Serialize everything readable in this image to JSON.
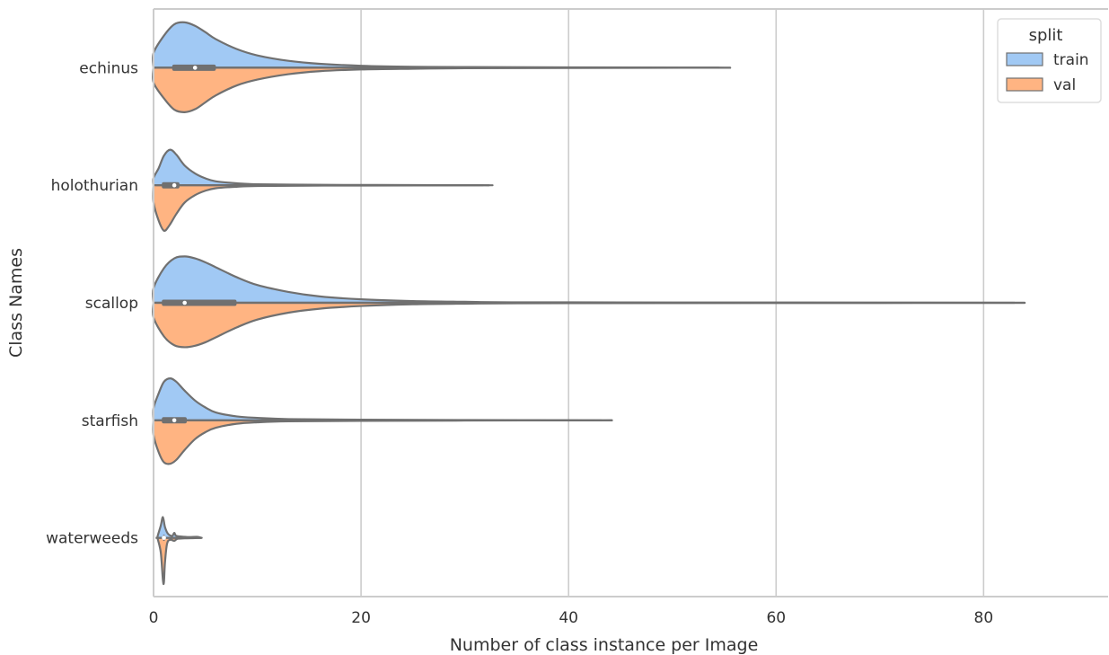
{
  "chart_data": {
    "type": "violin",
    "xlabel": "Number of class instance per Image",
    "ylabel": "Class Names",
    "xlim": [
      0,
      92
    ],
    "xticks": [
      0,
      20,
      40,
      60,
      80
    ],
    "grid": "x",
    "categories": [
      "echinus",
      "holothurian",
      "scallop",
      "starfish",
      "waterweeds"
    ],
    "legend": {
      "title": "split",
      "position": "top-right",
      "entries": [
        {
          "label": "train",
          "color": "#a1c9f4"
        },
        {
          "label": "val",
          "color": "#ffb482"
        }
      ]
    },
    "violins": [
      {
        "category": "echinus",
        "max": 54.5,
        "box": {
          "q1": 1.8,
          "median": 4,
          "q3": 6
        },
        "train": [
          [
            0,
            0.3
          ],
          [
            1,
            0.65
          ],
          [
            2,
            0.88
          ],
          [
            3,
            0.92
          ],
          [
            4,
            0.85
          ],
          [
            5,
            0.72
          ],
          [
            6,
            0.58
          ],
          [
            8,
            0.38
          ],
          [
            10,
            0.25
          ],
          [
            13,
            0.14
          ],
          [
            16,
            0.08
          ],
          [
            20,
            0.04
          ],
          [
            25,
            0.02
          ],
          [
            30,
            0.015
          ],
          [
            40,
            0.008
          ],
          [
            54.5,
            0
          ]
        ],
        "val": [
          [
            0,
            0.3
          ],
          [
            1,
            0.62
          ],
          [
            2,
            0.85
          ],
          [
            3,
            0.9
          ],
          [
            4,
            0.84
          ],
          [
            5,
            0.7
          ],
          [
            6,
            0.56
          ],
          [
            8,
            0.36
          ],
          [
            10,
            0.24
          ],
          [
            13,
            0.13
          ],
          [
            16,
            0.07
          ],
          [
            20,
            0.035
          ],
          [
            25,
            0.02
          ],
          [
            30,
            0.01
          ],
          [
            40,
            0.005
          ],
          [
            54.5,
            0
          ]
        ]
      },
      {
        "category": "holothurian",
        "max": 31.8,
        "box": {
          "q1": 0.8,
          "median": 2,
          "q3": 2.5
        },
        "train": [
          [
            0,
            0.15
          ],
          [
            0.5,
            0.35
          ],
          [
            1,
            0.6
          ],
          [
            1.6,
            0.72
          ],
          [
            2.2,
            0.62
          ],
          [
            3,
            0.4
          ],
          [
            4,
            0.24
          ],
          [
            5,
            0.14
          ],
          [
            6,
            0.08
          ],
          [
            8,
            0.04
          ],
          [
            10,
            0.02
          ],
          [
            15,
            0.01
          ],
          [
            20,
            0.006
          ],
          [
            25,
            0.004
          ],
          [
            31.8,
            0
          ]
        ],
        "val": [
          [
            0,
            0.35
          ],
          [
            0.5,
            0.72
          ],
          [
            1,
            0.92
          ],
          [
            1.5,
            0.82
          ],
          [
            2.2,
            0.58
          ],
          [
            3,
            0.35
          ],
          [
            4,
            0.2
          ],
          [
            5,
            0.11
          ],
          [
            6,
            0.06
          ],
          [
            8,
            0.03
          ],
          [
            10,
            0.015
          ],
          [
            15,
            0.008
          ],
          [
            20,
            0.005
          ],
          [
            31.8,
            0
          ]
        ]
      },
      {
        "category": "scallop",
        "max": 83,
        "box": {
          "q1": 0.8,
          "median": 3,
          "q3": 8
        },
        "train": [
          [
            0,
            0.3
          ],
          [
            1,
            0.7
          ],
          [
            2,
            0.9
          ],
          [
            3,
            0.94
          ],
          [
            4,
            0.9
          ],
          [
            5,
            0.82
          ],
          [
            6,
            0.72
          ],
          [
            8,
            0.52
          ],
          [
            10,
            0.36
          ],
          [
            13,
            0.22
          ],
          [
            16,
            0.13
          ],
          [
            20,
            0.07
          ],
          [
            25,
            0.035
          ],
          [
            30,
            0.02
          ],
          [
            35,
            0.01
          ],
          [
            50,
            0.006
          ],
          [
            70,
            0.003
          ],
          [
            83,
            0
          ]
        ],
        "val": [
          [
            0,
            0.3
          ],
          [
            1,
            0.68
          ],
          [
            2,
            0.86
          ],
          [
            3,
            0.9
          ],
          [
            4,
            0.87
          ],
          [
            5,
            0.8
          ],
          [
            6,
            0.7
          ],
          [
            8,
            0.5
          ],
          [
            10,
            0.34
          ],
          [
            13,
            0.2
          ],
          [
            16,
            0.12
          ],
          [
            20,
            0.065
          ],
          [
            25,
            0.03
          ],
          [
            30,
            0.018
          ],
          [
            35,
            0.01
          ],
          [
            50,
            0.005
          ],
          [
            70,
            0.002
          ],
          [
            83,
            0
          ]
        ]
      },
      {
        "category": "starfish",
        "max": 43.2,
        "box": {
          "q1": 0.8,
          "median": 2,
          "q3": 3.2
        },
        "train": [
          [
            0,
            0.25
          ],
          [
            0.5,
            0.55
          ],
          [
            1,
            0.78
          ],
          [
            1.6,
            0.85
          ],
          [
            2.2,
            0.78
          ],
          [
            3,
            0.6
          ],
          [
            4,
            0.4
          ],
          [
            5,
            0.26
          ],
          [
            6,
            0.16
          ],
          [
            8,
            0.08
          ],
          [
            10,
            0.05
          ],
          [
            13,
            0.025
          ],
          [
            20,
            0.012
          ],
          [
            30,
            0.006
          ],
          [
            43.2,
            0
          ]
        ],
        "val": [
          [
            0,
            0.3
          ],
          [
            0.5,
            0.65
          ],
          [
            1,
            0.85
          ],
          [
            1.6,
            0.88
          ],
          [
            2.2,
            0.8
          ],
          [
            3,
            0.6
          ],
          [
            4,
            0.38
          ],
          [
            5,
            0.24
          ],
          [
            6,
            0.15
          ],
          [
            8,
            0.07
          ],
          [
            10,
            0.04
          ],
          [
            13,
            0.02
          ],
          [
            20,
            0.01
          ],
          [
            30,
            0.005
          ],
          [
            43.2,
            0
          ]
        ]
      },
      {
        "category": "waterweeds",
        "max": 4.6,
        "box": {
          "q1": 0.9,
          "median": 1,
          "q3": 1.1
        },
        "train": [
          [
            0.4,
            0.04
          ],
          [
            0.7,
            0.25
          ],
          [
            0.9,
            0.42
          ],
          [
            1.1,
            0.22
          ],
          [
            1.4,
            0.08
          ],
          [
            1.8,
            0.04
          ],
          [
            2,
            0.1
          ],
          [
            2.2,
            0.04
          ],
          [
            3,
            0.02
          ],
          [
            3.5,
            0.015
          ],
          [
            4.2,
            0.02
          ],
          [
            4.6,
            0
          ]
        ],
        "val": [
          [
            0.4,
            0.02
          ],
          [
            0.7,
            0.3
          ],
          [
            0.9,
            0.85
          ],
          [
            1.0,
            0.9
          ],
          [
            1.1,
            0.5
          ],
          [
            1.3,
            0.12
          ],
          [
            1.6,
            0.04
          ],
          [
            2,
            0.06
          ],
          [
            2.3,
            0.02
          ],
          [
            3,
            0.01
          ],
          [
            4,
            0.005
          ],
          [
            4.6,
            0
          ]
        ]
      }
    ]
  }
}
